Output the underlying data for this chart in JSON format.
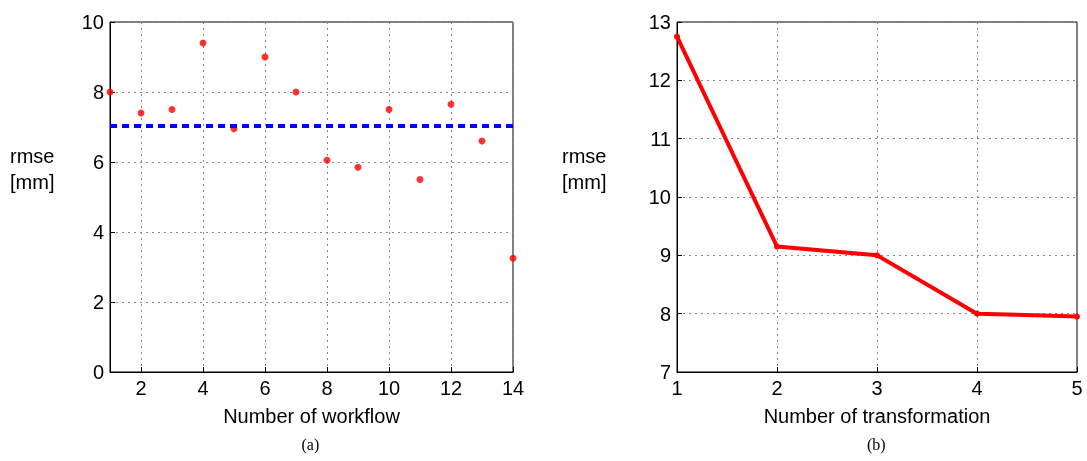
{
  "chart_data": [
    {
      "type": "scatter",
      "xlabel": "Number of workflow",
      "ylabel": "rmse [mm]",
      "annotations": [
        "(a)"
      ],
      "x": [
        1,
        2,
        3,
        4,
        5,
        6,
        7,
        8,
        9,
        10,
        11,
        12,
        13,
        14
      ],
      "series": [
        {
          "color": "#ff0000",
          "values": [
            8.0,
            7.4,
            7.5,
            9.4,
            6.95,
            9.0,
            8.0,
            6.05,
            5.85,
            7.5,
            5.5,
            7.65,
            6.6,
            3.25
          ]
        }
      ],
      "xlim": [
        1,
        14
      ],
      "xticks": [
        2,
        4,
        6,
        8,
        10,
        12,
        14
      ],
      "ylim": [
        0,
        10
      ],
      "yticks": [
        0,
        2,
        4,
        6,
        8,
        10
      ],
      "ref_lines": [
        {
          "axis": "y",
          "value": 7.05,
          "color": "#0000ff",
          "line_style": "dashed"
        }
      ],
      "grid": true,
      "marker": "circle"
    },
    {
      "type": "line",
      "xlabel": "Number of transformation",
      "ylabel": "rmse [mm]",
      "annotations": [
        "(b)"
      ],
      "x": [
        1,
        2,
        3,
        4,
        5
      ],
      "series": [
        {
          "color": "#ff0000",
          "values": [
            12.75,
            9.15,
            9.0,
            8.0,
            7.95
          ]
        }
      ],
      "xlim": [
        1,
        5
      ],
      "xticks": [
        1,
        2,
        3,
        4,
        5
      ],
      "ylim": [
        7,
        13
      ],
      "yticks": [
        7,
        8,
        9,
        10,
        11,
        12,
        13
      ],
      "grid": true,
      "marker": "circle",
      "line_style": "solid"
    }
  ]
}
